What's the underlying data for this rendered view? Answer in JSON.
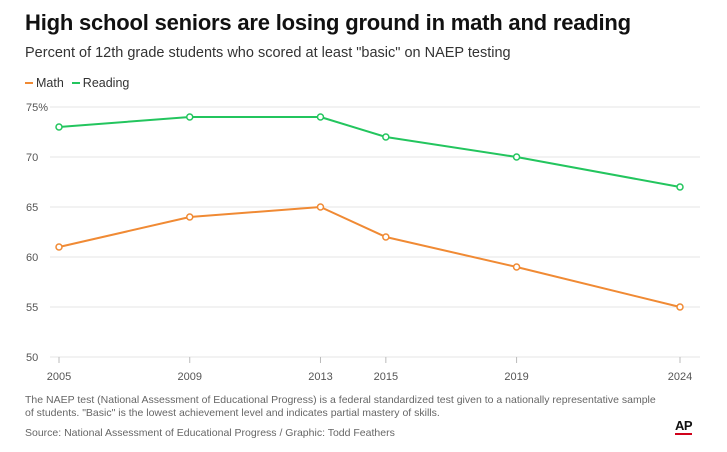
{
  "colors": {
    "math": "#f08a34",
    "reading": "#23c55e",
    "grid": "#e6e6e6",
    "axis": "#bbbbbb"
  },
  "chart_data": {
    "type": "line",
    "title": "High school seniors are losing ground in math and reading",
    "subtitle": "Percent of 12th grade students who scored at least \"basic\" on NAEP testing",
    "x": [
      2005,
      2009,
      2013,
      2015,
      2019,
      2024
    ],
    "xticks": [
      "2005",
      "2009",
      "2013",
      "2015",
      "2019",
      "2024"
    ],
    "ylim": [
      50,
      75
    ],
    "yticks": [
      50,
      55,
      60,
      65,
      70,
      75
    ],
    "ytick_labels": [
      "50",
      "55",
      "60",
      "65",
      "70",
      "75%"
    ],
    "grid": true,
    "legend_position": "top-left",
    "series": [
      {
        "name": "Math",
        "color_key": "math",
        "values": [
          61,
          64,
          65,
          62,
          59,
          55
        ]
      },
      {
        "name": "Reading",
        "color_key": "reading",
        "values": [
          73,
          74,
          74,
          72,
          70,
          67
        ]
      }
    ]
  },
  "footer": {
    "note": "The NAEP test (National Assessment of Educational Progress) is a federal standardized test given to a nationally representative sample of students. \"Basic\" is the lowest achievement level and indicates partial mastery of skills.",
    "source": "Source: National Assessment of Educational Progress / Graphic: Todd Feathers",
    "logo": "AP"
  }
}
